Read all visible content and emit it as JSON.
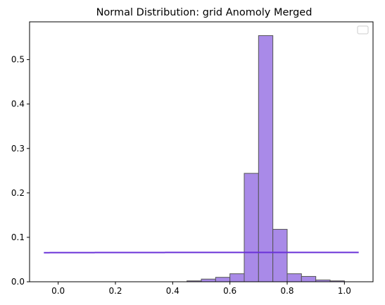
{
  "chart_data": {
    "type": "bar",
    "title": "Normal Distribution: grid Anomoly Merged",
    "xlabel": "",
    "ylabel": "",
    "xlim": [
      -0.1,
      1.1
    ],
    "ylim": [
      0,
      0.585
    ],
    "x_ticks": [
      "0.0",
      "0.2",
      "0.4",
      "0.6",
      "0.8",
      "1.0"
    ],
    "y_ticks": [
      "0.0",
      "0.1",
      "0.2",
      "0.3",
      "0.4",
      "0.5"
    ],
    "grid": false,
    "legend": "top-right (empty)",
    "colors": {
      "bar_fill": "#a98ae8",
      "bar_edge": "#555555",
      "curve": "#6a32d8"
    },
    "histogram": {
      "bins": [
        {
          "x0": 0.45,
          "x1": 0.5,
          "value": 0.002
        },
        {
          "x0": 0.5,
          "x1": 0.55,
          "value": 0.006
        },
        {
          "x0": 0.55,
          "x1": 0.6,
          "value": 0.01
        },
        {
          "x0": 0.6,
          "x1": 0.65,
          "value": 0.018
        },
        {
          "x0": 0.65,
          "x1": 0.7,
          "value": 0.244
        },
        {
          "x0": 0.7,
          "x1": 0.75,
          "value": 0.554
        },
        {
          "x0": 0.75,
          "x1": 0.8,
          "value": 0.118
        },
        {
          "x0": 0.8,
          "x1": 0.85,
          "value": 0.018
        },
        {
          "x0": 0.85,
          "x1": 0.9,
          "value": 0.012
        },
        {
          "x0": 0.9,
          "x1": 0.95,
          "value": 0.004
        },
        {
          "x0": 0.95,
          "x1": 1.0,
          "value": 0.002
        }
      ]
    },
    "curve": {
      "type": "normal",
      "mean": 0.715,
      "peak": 0.066,
      "x_range": [
        -0.05,
        1.05
      ]
    }
  }
}
